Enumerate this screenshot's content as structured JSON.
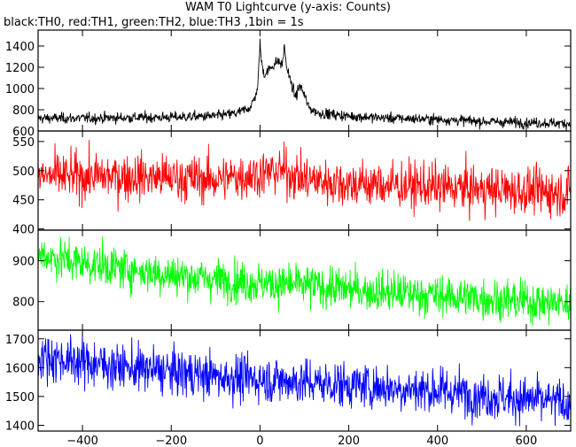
{
  "chart_data": {
    "type": "line",
    "title": "WAM T0 Lightcurve (y-axis: Counts)",
    "subtitle": "black:TH0, red:TH1, green:TH2, blue:TH3 ,1bin = 1s",
    "xlabel": "",
    "x_range": [
      -500,
      700
    ],
    "x_ticks": [
      -400,
      -200,
      0,
      200,
      400,
      600
    ],
    "bin_seconds": 1,
    "grid": false,
    "panels": [
      {
        "series_name": "TH0",
        "color": "#000000",
        "ylim": [
          600,
          1550
        ],
        "y_ticks": [
          600,
          800,
          1000,
          1200,
          1400
        ],
        "samples": [
          [
            -500,
            720
          ],
          [
            -400,
            720
          ],
          [
            -200,
            730
          ],
          [
            -100,
            740
          ],
          [
            -50,
            770
          ],
          [
            -20,
            830
          ],
          [
            -5,
            1000
          ],
          [
            0,
            1450
          ],
          [
            3,
            1250
          ],
          [
            10,
            1130
          ],
          [
            25,
            1200
          ],
          [
            40,
            1260
          ],
          [
            50,
            1220
          ],
          [
            55,
            1400
          ],
          [
            60,
            1200
          ],
          [
            70,
            1050
          ],
          [
            80,
            920
          ],
          [
            90,
            1030
          ],
          [
            100,
            940
          ],
          [
            110,
            820
          ],
          [
            130,
            770
          ],
          [
            200,
            740
          ],
          [
            300,
            720
          ],
          [
            400,
            710
          ],
          [
            500,
            690
          ],
          [
            600,
            680
          ],
          [
            700,
            670
          ]
        ],
        "noise_sd": 25
      },
      {
        "series_name": "TH1",
        "color": "#ff0000",
        "ylim": [
          398,
          568
        ],
        "y_ticks": [
          400,
          450,
          500,
          550
        ],
        "samples": [
          [
            -500,
            490
          ],
          [
            -300,
            490
          ],
          [
            -100,
            485
          ],
          [
            0,
            495
          ],
          [
            50,
            500
          ],
          [
            100,
            485
          ],
          [
            200,
            478
          ],
          [
            300,
            475
          ],
          [
            400,
            472
          ],
          [
            500,
            468
          ],
          [
            600,
            465
          ],
          [
            700,
            462
          ]
        ],
        "noise_sd": 20
      },
      {
        "series_name": "TH2",
        "color": "#00ff00",
        "ylim": [
          730,
          975
        ],
        "y_ticks": [
          800,
          900
        ],
        "samples": [
          [
            -500,
            915
          ],
          [
            -400,
            895
          ],
          [
            -300,
            880
          ],
          [
            -200,
            865
          ],
          [
            -100,
            855
          ],
          [
            0,
            845
          ],
          [
            100,
            840
          ],
          [
            200,
            830
          ],
          [
            300,
            822
          ],
          [
            400,
            815
          ],
          [
            500,
            808
          ],
          [
            600,
            800
          ],
          [
            700,
            795
          ]
        ],
        "noise_sd": 25
      },
      {
        "series_name": "TH3",
        "color": "#0000ff",
        "ylim": [
          1380,
          1730
        ],
        "y_ticks": [
          1400,
          1500,
          1600,
          1700
        ],
        "samples": [
          [
            -500,
            1640
          ],
          [
            -400,
            1620
          ],
          [
            -300,
            1600
          ],
          [
            -200,
            1585
          ],
          [
            -100,
            1570
          ],
          [
            0,
            1560
          ],
          [
            100,
            1550
          ],
          [
            200,
            1540
          ],
          [
            300,
            1530
          ],
          [
            400,
            1520
          ],
          [
            500,
            1505
          ],
          [
            600,
            1490
          ],
          [
            700,
            1475
          ]
        ],
        "noise_sd": 40
      }
    ]
  }
}
